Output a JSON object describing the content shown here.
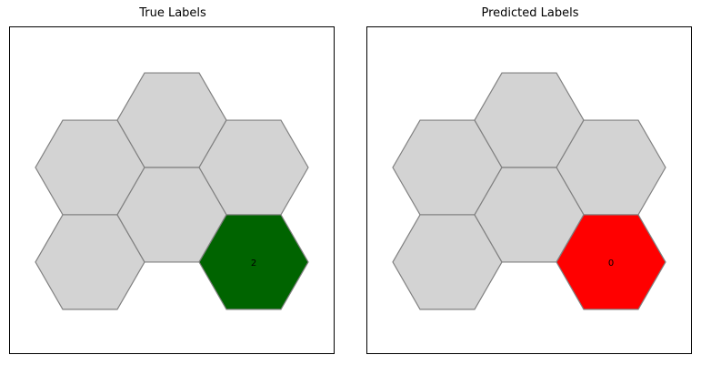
{
  "chart_data": [
    {
      "type": "hexbin-grid",
      "title": "True Labels",
      "cells": [
        {
          "col": 0,
          "row": 0,
          "color": "#d3d3d3",
          "label": ""
        },
        {
          "col": 1,
          "row": 0,
          "color": "#d3d3d3",
          "label": ""
        },
        {
          "col": 2,
          "row": 0,
          "color": "#d3d3d3",
          "label": ""
        },
        {
          "col": 0,
          "row": 1,
          "color": "#d3d3d3",
          "label": ""
        },
        {
          "col": 1,
          "row": 1,
          "color": "#d3d3d3",
          "label": ""
        },
        {
          "col": 2,
          "row": 1,
          "color": "#006400",
          "label": "2"
        }
      ]
    },
    {
      "type": "hexbin-grid",
      "title": "Predicted Labels",
      "cells": [
        {
          "col": 0,
          "row": 0,
          "color": "#d3d3d3",
          "label": ""
        },
        {
          "col": 1,
          "row": 0,
          "color": "#d3d3d3",
          "label": ""
        },
        {
          "col": 2,
          "row": 0,
          "color": "#d3d3d3",
          "label": ""
        },
        {
          "col": 0,
          "row": 1,
          "color": "#d3d3d3",
          "label": ""
        },
        {
          "col": 1,
          "row": 1,
          "color": "#d3d3d3",
          "label": ""
        },
        {
          "col": 2,
          "row": 1,
          "color": "#ff0000",
          "label": "0"
        }
      ]
    }
  ],
  "colors": {
    "edge": "#808080",
    "empty": "#d3d3d3"
  }
}
